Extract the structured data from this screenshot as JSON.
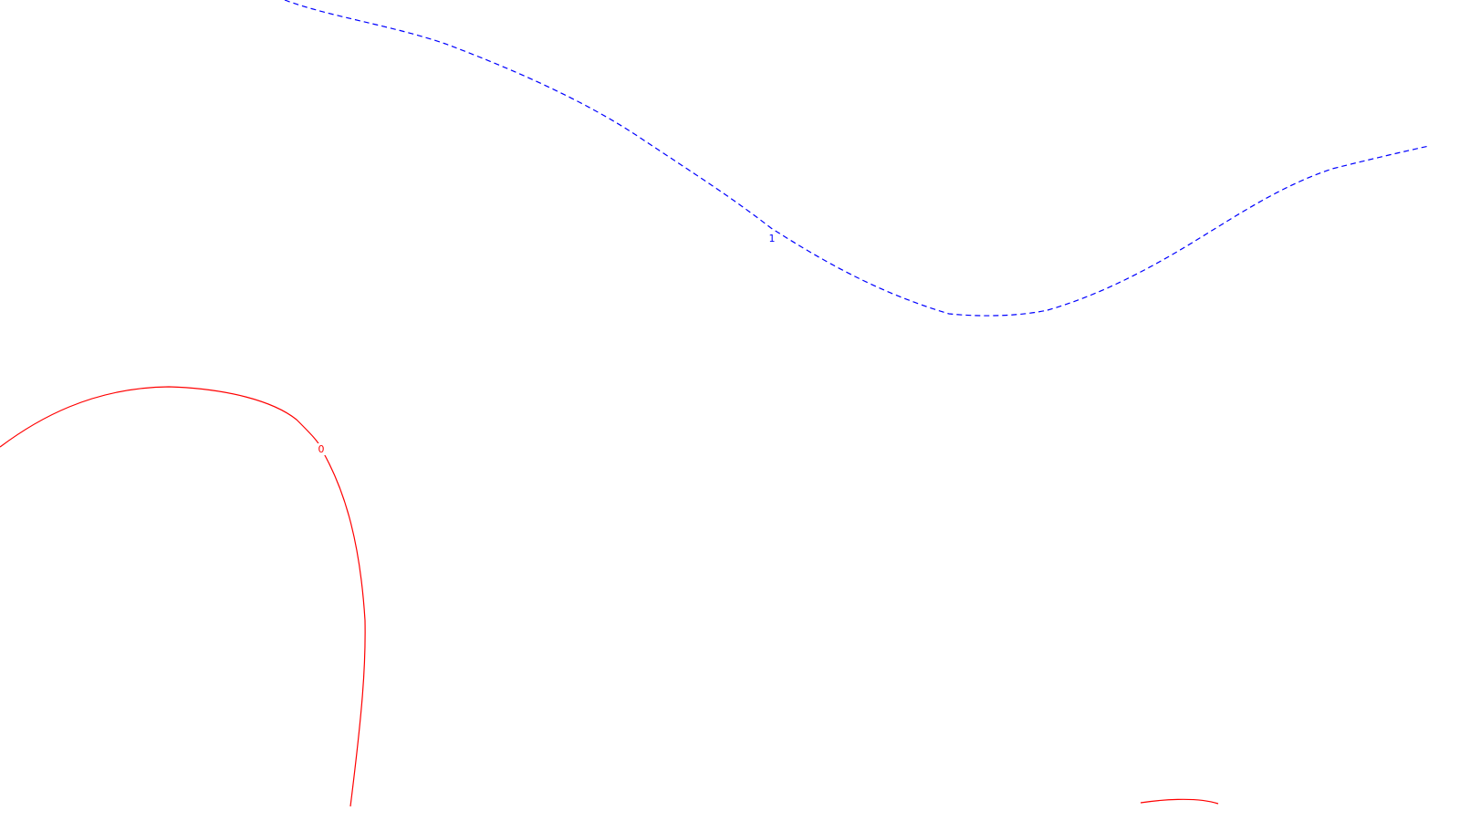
{
  "chart_data": {
    "type": "contour",
    "title": "",
    "xlabel": "",
    "ylabel": "",
    "grid": false,
    "legend": "none",
    "contour_levels": [
      {
        "level": "1",
        "color": "#0000ff",
        "style": "dashed"
      },
      {
        "level": "0",
        "color": "#ff0000",
        "style": "solid"
      }
    ]
  }
}
